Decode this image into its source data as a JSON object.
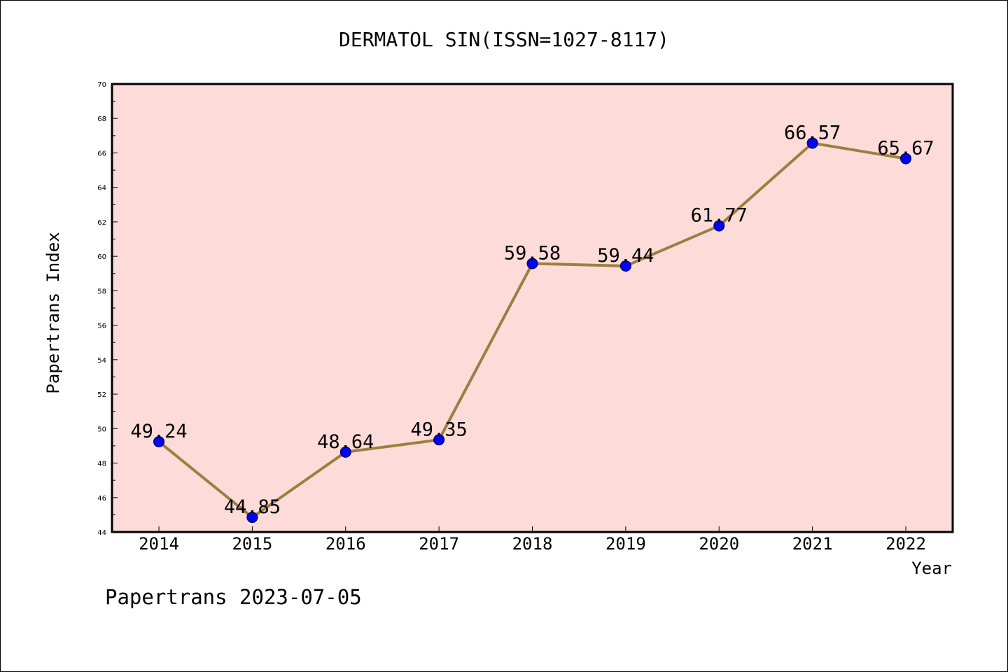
{
  "chart_data": {
    "type": "line",
    "title": "DERMATOL SIN(ISSN=1027-8117)",
    "xlabel": "Year",
    "ylabel": "Papertrans Index",
    "categories": [
      "2014",
      "2015",
      "2016",
      "2017",
      "2018",
      "2019",
      "2020",
      "2021",
      "2022"
    ],
    "series": [
      {
        "values": [
          49.24,
          44.85,
          48.64,
          49.35,
          59.58,
          59.44,
          61.77,
          66.57,
          65.67
        ],
        "labels": [
          "49.24",
          "44.85",
          "48.64",
          "49.35",
          "59.58",
          "59.44",
          "61.77",
          "66.57",
          "65.67"
        ]
      }
    ],
    "ylim": [
      44,
      70
    ],
    "y_ticks": [
      "44",
      "46",
      "48",
      "50",
      "52",
      "54",
      "56",
      "58",
      "60",
      "62",
      "64",
      "66",
      "68",
      "70"
    ],
    "grid": false,
    "colors": {
      "plot_background": "#fddbd9",
      "line": "#9a8040",
      "marker": "#0000ff"
    }
  },
  "footer": "Papertrans 2023-07-05"
}
